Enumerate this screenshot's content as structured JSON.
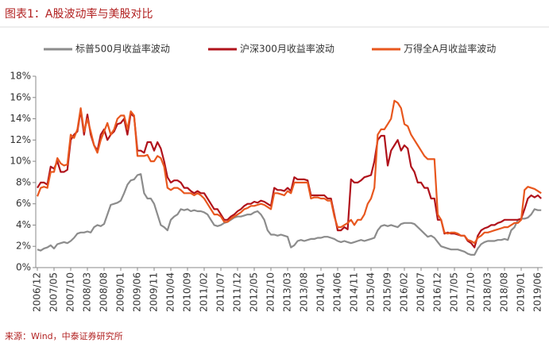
{
  "chart_data": {
    "type": "line",
    "title": "图表1：A股波动率与美股对比",
    "source": "来源：Wind，中泰证券研究所",
    "categories": [
      "2006/12",
      null,
      null,
      null,
      null,
      "2007/05",
      null,
      null,
      null,
      null,
      "2007/10",
      null,
      null,
      null,
      null,
      "2008/03",
      null,
      null,
      null,
      null,
      "2008/08",
      null,
      null,
      null,
      null,
      "2009/01",
      null,
      null,
      null,
      null,
      "2009/06",
      null,
      null,
      null,
      null,
      "2009/11",
      null,
      null,
      null,
      null,
      "2010/04",
      null,
      null,
      null,
      null,
      "2010/09",
      null,
      null,
      null,
      null,
      "2011/02",
      null,
      null,
      null,
      null,
      "2011/07",
      null,
      null,
      null,
      null,
      "2011/12",
      null,
      null,
      null,
      null,
      "2012/05",
      null,
      null,
      null,
      null,
      "2012/10",
      null,
      null,
      null,
      null,
      "2013/03",
      null,
      null,
      null,
      null,
      "2013/08",
      null,
      null,
      null,
      null,
      "2014/01",
      null,
      null,
      null,
      null,
      "2014/06",
      null,
      null,
      null,
      null,
      "2014/11",
      null,
      null,
      null,
      null,
      "2015/04",
      null,
      null,
      null,
      null,
      "2015/09",
      null,
      null,
      null,
      null,
      "2016/02",
      null,
      null,
      null,
      null,
      "2016/07",
      null,
      null,
      null,
      null,
      "2016/12",
      null,
      null,
      null,
      null,
      "2017/05",
      null,
      null,
      null,
      null,
      "2017/10",
      null,
      null,
      null,
      null,
      "2018/03",
      null,
      null,
      null,
      null,
      "2018/08",
      null,
      null,
      null,
      null,
      "2019/01",
      null,
      null,
      null,
      null,
      "2019/06",
      null
    ],
    "series": [
      {
        "name": "标普500月收益率波动",
        "color": "#8c8c8c",
        "values": [
          1.7,
          1.6,
          1.8,
          1.9,
          2.1,
          1.8,
          2.2,
          2.3,
          2.4,
          2.3,
          2.5,
          2.8,
          3.2,
          3.3,
          3.3,
          3.4,
          3.3,
          3.8,
          4.0,
          3.9,
          4.1,
          5.0,
          5.9,
          6.0,
          6.1,
          6.3,
          7.0,
          7.8,
          8.2,
          8.3,
          8.7,
          8.8,
          7.0,
          6.5,
          6.5,
          6.0,
          5.0,
          4.0,
          3.8,
          3.5,
          4.5,
          4.8,
          5.0,
          5.5,
          5.4,
          5.5,
          5.3,
          5.4,
          5.3,
          5.3,
          5.2,
          5.0,
          4.5,
          4.0,
          3.9,
          4.0,
          4.2,
          4.3,
          4.5,
          4.7,
          4.8,
          4.8,
          4.9,
          5.0,
          5.0,
          5.2,
          5.3,
          5.0,
          4.5,
          3.5,
          3.1,
          3.1,
          3.0,
          3.1,
          3.0,
          2.9,
          1.9,
          2.1,
          2.5,
          2.6,
          2.5,
          2.6,
          2.7,
          2.7,
          2.8,
          2.8,
          2.9,
          2.9,
          2.8,
          2.7,
          2.5,
          2.4,
          2.5,
          2.4,
          2.3,
          2.4,
          2.5,
          2.6,
          2.5,
          2.6,
          2.7,
          2.8,
          3.5,
          3.9,
          4.0,
          3.9,
          4.0,
          3.9,
          3.8,
          4.1,
          4.2,
          4.2,
          4.2,
          4.1,
          3.8,
          3.5,
          3.2,
          2.9,
          3.0,
          2.8,
          2.4,
          2.0,
          1.9,
          1.8,
          1.7,
          1.7,
          1.7,
          1.6,
          1.5,
          1.3,
          1.2,
          1.2,
          1.8,
          2.2,
          2.4,
          2.5,
          2.5,
          2.5,
          2.6,
          2.6,
          2.7,
          2.6,
          3.5,
          3.8,
          4.5,
          4.6,
          4.6,
          4.7,
          5.0,
          5.5,
          5.4,
          5.4
        ]
      },
      {
        "name": "沪深300月收益率波动",
        "color": "#b0121b",
        "values": [
          7.5,
          8.0,
          8.0,
          7.8,
          9.5,
          9.3,
          10.0,
          9.0,
          9.0,
          9.2,
          12.0,
          12.5,
          12.8,
          14.8,
          12.5,
          14.4,
          12.5,
          11.5,
          11.0,
          12.5,
          13.0,
          12.0,
          12.5,
          12.8,
          13.5,
          13.6,
          14.0,
          12.5,
          14.5,
          14.2,
          11.0,
          11.0,
          10.8,
          11.8,
          11.8,
          11.0,
          11.8,
          11.2,
          10.0,
          8.5,
          8.0,
          8.2,
          8.2,
          8.0,
          7.5,
          7.5,
          7.2,
          7.0,
          7.2,
          7.0,
          7.0,
          6.5,
          6.0,
          5.5,
          5.5,
          5.0,
          4.5,
          4.5,
          4.8,
          5.0,
          5.3,
          5.5,
          5.8,
          6.0,
          6.0,
          6.2,
          6.1,
          6.3,
          6.2,
          6.0,
          5.8,
          7.5,
          7.3,
          7.3,
          7.2,
          7.5,
          7.2,
          8.5,
          8.3,
          8.3,
          8.3,
          8.2,
          6.8,
          6.8,
          6.8,
          6.8,
          6.8,
          6.5,
          6.5,
          5.0,
          3.5,
          3.5,
          3.8,
          3.6,
          8.3,
          8.0,
          8.0,
          8.2,
          8.5,
          8.6,
          8.7,
          10.0,
          12.0,
          12.4,
          12.4,
          9.6,
          11.0,
          11.5,
          12.0,
          11.0,
          11.5,
          11.2,
          9.5,
          9.0,
          8.0,
          8.0,
          7.5,
          7.5,
          6.5,
          6.5,
          4.5,
          4.5,
          3.2,
          3.3,
          3.2,
          3.2,
          3.1,
          3.0,
          3.0,
          2.5,
          2.3,
          1.9,
          3.0,
          3.5,
          3.7,
          3.8,
          4.0,
          4.0,
          4.2,
          4.3,
          4.5,
          4.5,
          4.5,
          4.5,
          4.5,
          4.6,
          5.5,
          6.5,
          6.8,
          6.6,
          6.8,
          6.5
        ]
      },
      {
        "name": "万得全A月收益率波动",
        "color": "#e8571e",
        "values": [
          6.7,
          7.5,
          7.6,
          7.5,
          9.0,
          9.0,
          10.3,
          9.8,
          9.6,
          9.7,
          12.5,
          12.2,
          13.0,
          15.0,
          12.8,
          14.0,
          12.8,
          11.5,
          10.8,
          12.0,
          12.8,
          13.6,
          12.5,
          13.0,
          14.0,
          14.3,
          14.3,
          13.0,
          14.7,
          14.3,
          10.5,
          10.5,
          10.5,
          10.6,
          10.0,
          10.0,
          10.5,
          10.3,
          9.5,
          7.5,
          7.3,
          7.5,
          7.5,
          7.3,
          7.0,
          7.0,
          7.0,
          6.8,
          7.0,
          6.8,
          6.5,
          6.0,
          5.5,
          5.0,
          5.0,
          4.8,
          4.3,
          4.3,
          4.6,
          4.8,
          5.0,
          5.2,
          5.5,
          5.6,
          5.8,
          5.8,
          5.9,
          6.0,
          5.9,
          5.7,
          5.5,
          7.0,
          7.0,
          6.9,
          6.8,
          7.2,
          7.0,
          8.0,
          8.0,
          8.0,
          8.0,
          8.0,
          6.5,
          6.6,
          6.6,
          6.5,
          6.5,
          6.3,
          6.3,
          4.8,
          3.8,
          3.8,
          4.0,
          4.2,
          4.5,
          4.0,
          4.5,
          4.5,
          5.0,
          6.0,
          6.5,
          7.5,
          12.5,
          13.0,
          13.0,
          13.5,
          14.0,
          15.7,
          15.5,
          15.0,
          13.5,
          13.3,
          12.5,
          12.0,
          11.5,
          11.0,
          10.5,
          10.2,
          10.2,
          10.2,
          5.0,
          4.5,
          3.3,
          3.2,
          3.3,
          3.3,
          3.2,
          3.0,
          3.0,
          2.6,
          2.5,
          2.3,
          2.8,
          3.0,
          3.3,
          3.3,
          3.4,
          3.5,
          3.6,
          3.7,
          3.8,
          3.8,
          4.0,
          4.2,
          4.2,
          4.5,
          7.3,
          7.6,
          7.5,
          7.4,
          7.2,
          7.0
        ]
      }
    ],
    "ylim": [
      0,
      18
    ],
    "yticks": [
      {
        "value": 0,
        "label": "0%"
      },
      {
        "value": 2,
        "label": "2%"
      },
      {
        "value": 4,
        "label": "4%"
      },
      {
        "value": 6,
        "label": "6%"
      },
      {
        "value": 8,
        "label": "8%"
      },
      {
        "value": 10,
        "label": "10%"
      },
      {
        "value": 12,
        "label": "12%"
      },
      {
        "value": 14,
        "label": "14%"
      },
      {
        "value": 16,
        "label": "16%"
      },
      {
        "value": 18,
        "label": "18%"
      }
    ],
    "legend": "top"
  }
}
